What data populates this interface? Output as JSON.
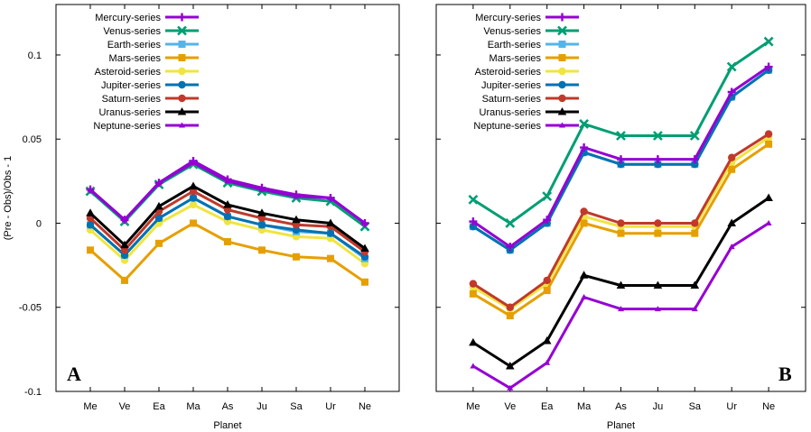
{
  "chart_data": [
    {
      "type": "line",
      "panel_label": "A",
      "xlabel": "Planet",
      "ylabel": "(Pre - Obs)/Obs  -  1",
      "categories": [
        "Me",
        "Ve",
        "Ea",
        "Ma",
        "As",
        "Ju",
        "Sa",
        "Ur",
        "Ne"
      ],
      "ylim": [
        -0.1,
        0.13
      ],
      "yticks": [
        -0.1,
        -0.05,
        0,
        0.05,
        0.1
      ],
      "ytick_labels": [
        "-0.1",
        "-0.05",
        "0",
        "0.05",
        "0.1"
      ],
      "legend_position": "top-left",
      "series": [
        {
          "name": "Mercury-series",
          "color": "#9400D3",
          "marker": "plus",
          "values": [
            0.02,
            0.002,
            0.024,
            0.037,
            0.026,
            0.021,
            0.017,
            0.015,
            0.0
          ]
        },
        {
          "name": "Venus-series",
          "color": "#009E73",
          "marker": "cross",
          "values": [
            0.019,
            0.001,
            0.023,
            0.035,
            0.024,
            0.019,
            0.015,
            0.013,
            -0.002
          ]
        },
        {
          "name": "Earth-series",
          "color": "#56B4E9",
          "marker": "square",
          "values": [
            -0.001,
            -0.019,
            0.003,
            0.015,
            0.004,
            -0.001,
            -0.005,
            -0.006,
            -0.021
          ]
        },
        {
          "name": "Mars-series",
          "color": "#E69F00",
          "marker": "square",
          "values": [
            -0.016,
            -0.034,
            -0.012,
            0.0,
            -0.011,
            -0.016,
            -0.02,
            -0.021,
            -0.035
          ]
        },
        {
          "name": "Asteroid-series",
          "color": "#F0E442",
          "marker": "circle",
          "values": [
            -0.004,
            -0.022,
            0.0,
            0.011,
            0.001,
            -0.004,
            -0.008,
            -0.009,
            -0.024
          ]
        },
        {
          "name": "Jupiter-series",
          "color": "#0072B2",
          "marker": "circle",
          "values": [
            -0.001,
            -0.019,
            0.003,
            0.015,
            0.004,
            -0.001,
            -0.004,
            -0.006,
            -0.02
          ]
        },
        {
          "name": "Saturn-series",
          "color": "#C0392B",
          "marker": "circle",
          "values": [
            0.003,
            -0.016,
            0.007,
            0.019,
            0.008,
            0.003,
            -0.001,
            -0.002,
            -0.017
          ]
        },
        {
          "name": "Uranus-series",
          "color": "#000000",
          "marker": "triangle",
          "values": [
            0.006,
            -0.013,
            0.01,
            0.022,
            0.011,
            0.006,
            0.002,
            0.0,
            -0.015
          ]
        },
        {
          "name": "Neptune-series",
          "color": "#9400D3",
          "marker": "tri-small",
          "values": [
            0.02,
            0.002,
            0.024,
            0.036,
            0.025,
            0.02,
            0.016,
            0.015,
            0.0
          ]
        }
      ]
    },
    {
      "type": "line",
      "panel_label": "B",
      "xlabel": "Planet",
      "categories": [
        "Me",
        "Ve",
        "Ea",
        "Ma",
        "As",
        "Ju",
        "Sa",
        "Ur",
        "Ne"
      ],
      "ylim": [
        -0.1,
        0.13
      ],
      "legend_position": "top-left",
      "series": [
        {
          "name": "Mercury-series",
          "color": "#9400D3",
          "marker": "plus",
          "values": [
            0.001,
            -0.014,
            0.002,
            0.045,
            0.038,
            0.038,
            0.038,
            0.078,
            0.093
          ]
        },
        {
          "name": "Venus-series",
          "color": "#009E73",
          "marker": "cross",
          "values": [
            0.014,
            0.0,
            0.016,
            0.059,
            0.052,
            0.052,
            0.052,
            0.093,
            0.108
          ]
        },
        {
          "name": "Earth-series",
          "color": "#56B4E9",
          "marker": "square",
          "values": [
            -0.002,
            -0.016,
            0.0,
            0.042,
            0.035,
            0.035,
            0.035,
            0.075,
            0.091
          ]
        },
        {
          "name": "Mars-series",
          "color": "#E69F00",
          "marker": "square",
          "values": [
            -0.042,
            -0.055,
            -0.04,
            0.0,
            -0.006,
            -0.006,
            -0.006,
            0.032,
            0.047
          ]
        },
        {
          "name": "Asteroid-series",
          "color": "#F0E442",
          "marker": "circle",
          "values": [
            -0.038,
            -0.051,
            -0.036,
            0.004,
            -0.002,
            -0.002,
            -0.002,
            0.036,
            0.051
          ]
        },
        {
          "name": "Jupiter-series",
          "color": "#0072B2",
          "marker": "circle",
          "values": [
            -0.002,
            -0.016,
            0.0,
            0.042,
            0.035,
            0.035,
            0.035,
            0.075,
            0.091
          ]
        },
        {
          "name": "Saturn-series",
          "color": "#C0392B",
          "marker": "circle",
          "values": [
            -0.036,
            -0.05,
            -0.034,
            0.007,
            0.0,
            0.0,
            0.0,
            0.039,
            0.053
          ]
        },
        {
          "name": "Uranus-series",
          "color": "#000000",
          "marker": "triangle",
          "values": [
            -0.071,
            -0.085,
            -0.07,
            -0.031,
            -0.037,
            -0.037,
            -0.037,
            0.0,
            0.015
          ]
        },
        {
          "name": "Neptune-series",
          "color": "#9400D3",
          "marker": "tri-small",
          "values": [
            -0.085,
            -0.098,
            -0.083,
            -0.044,
            -0.051,
            -0.051,
            -0.051,
            -0.014,
            0.0
          ]
        }
      ]
    }
  ]
}
